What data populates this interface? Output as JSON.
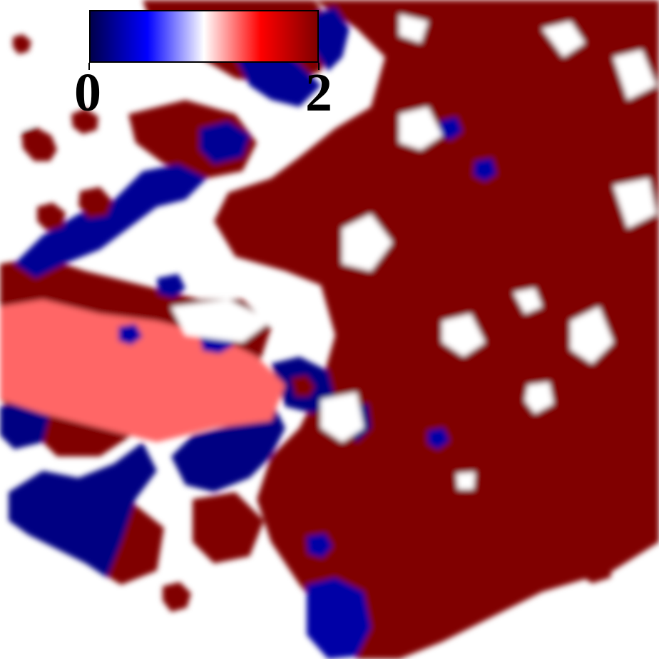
{
  "chart_data": {
    "type": "heatmap",
    "title": "",
    "xlabel": "",
    "ylabel": "",
    "colorbar": {
      "min": 0,
      "max": 2,
      "tick_labels": [
        "0",
        "2"
      ],
      "colormap": "seismic",
      "stops": [
        "#00004c",
        "#0000ff",
        "#ffffff",
        "#ff0000",
        "#800000"
      ],
      "placement": "top-left"
    },
    "background": "#ffffff",
    "regions": [
      {
        "name": "large-high-region-east",
        "value": 2.0
      },
      {
        "name": "low-band-northwest",
        "value": 0.2
      },
      {
        "name": "low-band-southwest",
        "value": 0.15
      },
      {
        "name": "mixed-band-west",
        "value": 1.3
      },
      {
        "name": "low-patch-south",
        "value": 0.25
      },
      {
        "name": "isolated-high-blobs",
        "value": 2.0
      }
    ]
  }
}
